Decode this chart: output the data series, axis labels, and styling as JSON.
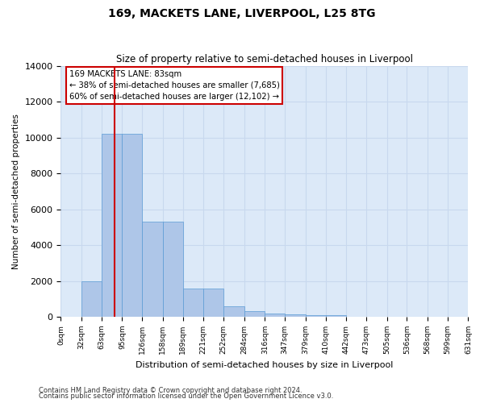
{
  "title1": "169, MACKETS LANE, LIVERPOOL, L25 8TG",
  "title2": "Size of property relative to semi-detached houses in Liverpool",
  "xlabel": "Distribution of semi-detached houses by size in Liverpool",
  "ylabel": "Number of semi-detached properties",
  "footer1": "Contains HM Land Registry data © Crown copyright and database right 2024.",
  "footer2": "Contains public sector information licensed under the Open Government Licence v3.0.",
  "property_size": 83,
  "property_label": "169 MACKETS LANE: 83sqm",
  "pct_smaller": 38,
  "n_smaller": 7685,
  "pct_larger": 60,
  "n_larger": 12102,
  "bin_edges": [
    0,
    32,
    63,
    95,
    126,
    158,
    189,
    221,
    252,
    284,
    316,
    347,
    379,
    410,
    442,
    473,
    505,
    536,
    568,
    599,
    631
  ],
  "bar_heights": [
    0,
    2000,
    10200,
    10200,
    5300,
    5300,
    1600,
    1600,
    600,
    300,
    200,
    150,
    100,
    100,
    0,
    0,
    0,
    0,
    0,
    0
  ],
  "bar_color": "#aec6e8",
  "bar_edgecolor": "#5b9bd5",
  "vline_color": "#cc0000",
  "annotation_box_facecolor": "#ffffff",
  "annotation_box_edgecolor": "#cc0000",
  "ylim": [
    0,
    14000
  ],
  "yticks": [
    0,
    2000,
    4000,
    6000,
    8000,
    10000,
    12000,
    14000
  ],
  "grid_color": "#c8d8ee",
  "bg_color": "#dce9f8",
  "fig_bg_color": "#ffffff"
}
